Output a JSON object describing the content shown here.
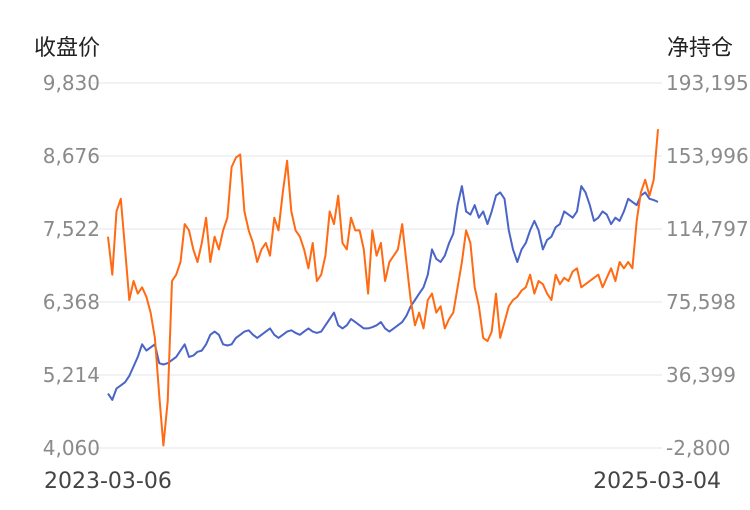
{
  "chart_data": {
    "type": "line",
    "left_axis_title": "收盘价",
    "right_axis_title": "净持仓",
    "left_ticks": [
      "9,830",
      "8,676",
      "7,522",
      "6,368",
      "5,214",
      "4,060"
    ],
    "right_ticks": [
      "193,195",
      "153,996",
      "114,797",
      "75,598",
      "36,399",
      "-2,800"
    ],
    "ylim_left": [
      4060,
      9830
    ],
    "ylim_right": [
      -2800,
      193195
    ],
    "x_start": "2023-03-06",
    "x_end": "2025-03-04",
    "grid": true,
    "series": [
      {
        "axis": "left",
        "color": "#4a64c8",
        "values": [
          4920,
          4820,
          5000,
          5050,
          5100,
          5200,
          5350,
          5500,
          5700,
          5600,
          5650,
          5700,
          5400,
          5380,
          5400,
          5450,
          5500,
          5600,
          5700,
          5500,
          5520,
          5580,
          5600,
          5700,
          5850,
          5900,
          5850,
          5700,
          5680,
          5700,
          5800,
          5850,
          5900,
          5920,
          5850,
          5800,
          5850,
          5900,
          5950,
          5850,
          5800,
          5850,
          5900,
          5920,
          5880,
          5850,
          5900,
          5950,
          5900,
          5880,
          5900,
          6000,
          6100,
          6200,
          6000,
          5950,
          6000,
          6100,
          6050,
          6000,
          5950,
          5950,
          5970,
          6000,
          6050,
          5950,
          5900,
          5950,
          6000,
          6050,
          6150,
          6300,
          6400,
          6500,
          6600,
          6800,
          7200,
          7050,
          7000,
          7100,
          7300,
          7450,
          7900,
          8200,
          7800,
          7750,
          7900,
          7700,
          7800,
          7600,
          7800,
          8050,
          8100,
          8000,
          7500,
          7200,
          7000,
          7200,
          7300,
          7500,
          7650,
          7500,
          7200,
          7350,
          7400,
          7550,
          7600,
          7800,
          7750,
          7700,
          7800,
          8200,
          8100,
          7900,
          7650,
          7700,
          7800,
          7750,
          7600,
          7700,
          7650,
          7800,
          8000,
          7950,
          7900,
          8050,
          8100,
          8000,
          7980,
          7950
        ]
      },
      {
        "axis": "left",
        "color": "#ff6a13",
        "values": [
          7400,
          6800,
          7800,
          8000,
          7200,
          6400,
          6700,
          6500,
          6600,
          6450,
          6200,
          5800,
          4900,
          4100,
          4800,
          6700,
          6800,
          7000,
          7600,
          7500,
          7200,
          7000,
          7300,
          7700,
          7000,
          7400,
          7200,
          7500,
          7700,
          8500,
          8650,
          8700,
          7800,
          7500,
          7300,
          7000,
          7200,
          7300,
          7100,
          7700,
          7500,
          8100,
          8600,
          7800,
          7500,
          7400,
          7200,
          6900,
          7300,
          6700,
          6800,
          7100,
          7800,
          7600,
          8050,
          7300,
          7200,
          7700,
          7500,
          7500,
          7200,
          6500,
          7500,
          7100,
          7300,
          6700,
          7000,
          7100,
          7200,
          7600,
          7000,
          6400,
          6000,
          6200,
          5950,
          6400,
          6500,
          6200,
          6300,
          5950,
          6100,
          6200,
          6600,
          7000,
          7500,
          7300,
          6600,
          6300,
          5800,
          5750,
          5900,
          6500,
          5800,
          6050,
          6300,
          6400,
          6450,
          6550,
          6600,
          6800,
          6500,
          6700,
          6650,
          6500,
          6400,
          6800,
          6650,
          6750,
          6700,
          6850,
          6900,
          6600,
          6650,
          6700,
          6750,
          6800,
          6600,
          6750,
          6900,
          6700,
          7000,
          6900,
          7000,
          6900,
          7650,
          8100,
          8300,
          8050,
          8300,
          9100
        ]
      }
    ]
  }
}
